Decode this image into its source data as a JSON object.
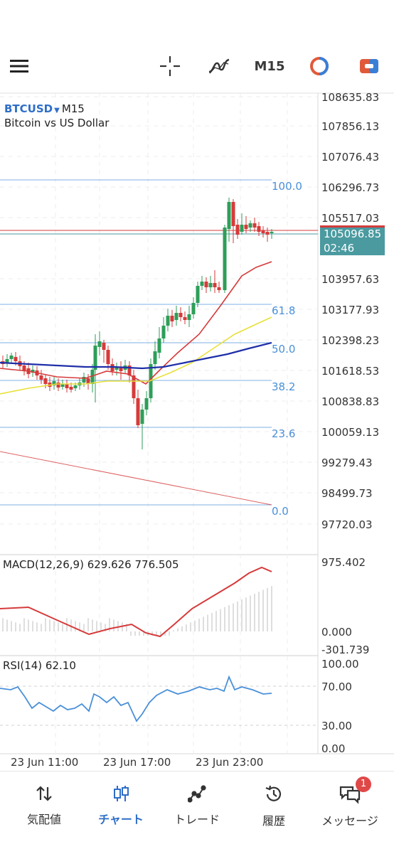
{
  "toolbar": {
    "menu_icon": "hamburger-menu-icon",
    "crosshair_icon": "crosshair-icon",
    "indicators_icon": "indicators-icon",
    "timeframe": "M15",
    "objects_icon": "objects-icon",
    "trade_icon": "trade-icon"
  },
  "chart": {
    "symbol": "BTCUSD",
    "timeframe": "M15",
    "description": "Bitcoin vs US Dollar",
    "current_price": "105096.85",
    "countdown": "02:46",
    "price_labels": [
      "108635.83",
      "107856.13",
      "107076.43",
      "106296.73",
      "105517.03",
      "103957.63",
      "103177.93",
      "102398.23",
      "101618.53",
      "100838.83",
      "100059.13",
      "99279.43",
      "98499.73",
      "97720.03"
    ],
    "fib_levels": [
      "100.0",
      "61.8",
      "50.0",
      "38.2",
      "23.6",
      "0.0"
    ],
    "time_labels": [
      "23 Jun 11:00",
      "23 Jun 17:00",
      "23 Jun 23:00"
    ],
    "colors": {
      "bull": "#2e9e59",
      "bear": "#d63a3a",
      "fib": "#4a90d9",
      "ma_fast": "#d63a3a",
      "ma_mid": "#e8e03a",
      "ma_slow": "#1f2fa8",
      "tag": "#4a9aa0"
    }
  },
  "macd": {
    "label": "MACD(12,26,9) 629.626 776.505",
    "scale": [
      "975.402",
      "0.000",
      "-301.739"
    ]
  },
  "rsi": {
    "label": "RSI(14) 62.10",
    "scale": [
      "100.00",
      "70.00",
      "30.00",
      "0.00"
    ]
  },
  "nav": {
    "items": [
      {
        "label": "気配値",
        "icon": "quotes-icon"
      },
      {
        "label": "チャート",
        "icon": "chart-icon"
      },
      {
        "label": "トレード",
        "icon": "trade-icon"
      },
      {
        "label": "履歴",
        "icon": "history-icon"
      },
      {
        "label": "メッセージ",
        "icon": "messages-icon"
      }
    ],
    "message_badge": "1"
  }
}
